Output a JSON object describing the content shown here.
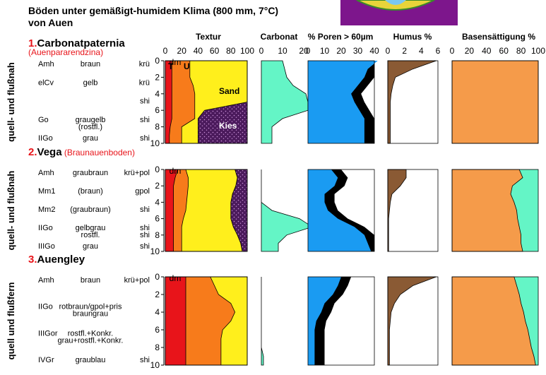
{
  "title": {
    "line1": "Böden unter gemäßigt-humidem Klima (800 mm, 7°C)",
    "line2": "von Auen"
  },
  "headers": {
    "textur": "Textur",
    "carbonat": "Carbonat",
    "poren": "% Poren > 60µm",
    "humus": "Humus %",
    "basen": "Basensättigung %"
  },
  "ticks": {
    "textur": [
      "0",
      "20",
      "40",
      "60",
      "80",
      "100"
    ],
    "carbonat": [
      "0",
      "10",
      "20"
    ],
    "poren": [
      "0",
      "10",
      "20",
      "30",
      "40"
    ],
    "humus": [
      "0",
      "2",
      "4",
      "6"
    ],
    "basen": [
      "0",
      "20",
      "40",
      "60",
      "80",
      "100"
    ],
    "depth": [
      "0",
      "2",
      "4",
      "6",
      "8",
      "10"
    ],
    "depth_top": "dm"
  },
  "labels": {
    "ton": "T",
    "schluff": "U",
    "sand": "Sand",
    "kies": "Kies"
  },
  "colors": {
    "ton": "#e8141a",
    "schluff": "#f77b1b",
    "sand": "#ffef1c",
    "kies": "#4b1a5c",
    "carbonat": "#64f5c6",
    "poren": "#1a9bf2",
    "humus": "#8a5a34",
    "basen": "#f59b4a",
    "basen2": "#64f5c6",
    "logo_bg": "#7d168c"
  },
  "profiles": [
    {
      "number": "1.",
      "name": "Carbonatpaternia",
      "subtitle": "(Auenpararendzina)",
      "side": "quell- und flußnah",
      "horizons": [
        {
          "name": "Amh",
          "color": "braun",
          "carb": "krü"
        },
        {
          "name": "elCv",
          "color": "gelb",
          "carb": "krü"
        },
        {
          "name": "",
          "color": "",
          "carb": "shi"
        },
        {
          "name": "Go",
          "color": "graugelb",
          "color2": "(rostfl.)",
          "carb": "shi"
        },
        {
          "name": "IIGo",
          "color": "grau",
          "carb": "shi"
        }
      ]
    },
    {
      "number": "2.",
      "name": "Vega",
      "subtitle": "(Braunauenboden)",
      "side": "quell- und flußnah",
      "horizons": [
        {
          "name": "Amh",
          "color": "graubraun",
          "carb": "krü+pol"
        },
        {
          "name": "Mm1",
          "color": "(braun)",
          "carb": "gpol"
        },
        {
          "name": "Mm2",
          "color": "(graubraun)",
          "carb": "shi"
        },
        {
          "name": "IIGo",
          "color": "gelbgrau",
          "color2": "rostfl.",
          "carb": "shi",
          "carb2": "shi"
        },
        {
          "name": "IIIGo",
          "color": "grau",
          "carb": "shi"
        }
      ]
    },
    {
      "number": "3.",
      "name": "Auengley",
      "subtitle": "",
      "side": "quell und flußfern",
      "horizons": [
        {
          "name": "Amh",
          "color": "braun",
          "carb": "krü+pol"
        },
        {
          "name": "IIGo",
          "color": "rotbraun/gpol+pris",
          "color2": "braungrau"
        },
        {
          "name": "IIIGor",
          "color": "rostfl.+Konkr.",
          "color2": "grau+rostfl.+Konkr."
        },
        {
          "name": "IVGr",
          "color": "graublau",
          "carb": "shi"
        }
      ]
    }
  ],
  "chart_data": {
    "type": "area",
    "y_axis": {
      "label": "dm",
      "range": [
        0,
        10
      ],
      "inverted": true
    },
    "panels": {
      "textur": {
        "xlim": [
          0,
          100
        ],
        "series": [
          "Ton (T)",
          "Schluff (U)",
          "Sand",
          "Kies"
        ]
      },
      "carbonat": {
        "xlim": [
          0,
          20
        ]
      },
      "poren": {
        "xlim": [
          0,
          40
        ]
      },
      "humus": {
        "xlim": [
          0,
          6
        ]
      },
      "basen": {
        "xlim": [
          0,
          100
        ]
      }
    },
    "profiles": [
      {
        "depth": [
          0,
          1,
          2,
          3,
          4,
          5,
          6,
          7,
          8,
          9,
          10
        ],
        "textur_cumulative": {
          "T": [
            8,
            8,
            8,
            8,
            8,
            8,
            8,
            8,
            6,
            5,
            5
          ],
          "TU": [
            30,
            30,
            30,
            34,
            36,
            36,
            36,
            36,
            20,
            20,
            20
          ],
          "TUS": [
            100,
            100,
            100,
            100,
            100,
            100,
            48,
            40,
            40,
            40,
            40
          ]
        },
        "carbonat": [
          10,
          11,
          12,
          15,
          21,
          22,
          22,
          10,
          5,
          5,
          5
        ],
        "poren_blue": [
          42,
          36,
          34,
          30,
          26,
          28,
          31,
          34,
          34,
          34,
          34
        ],
        "humus": [
          5.8,
          3,
          0.9,
          0.6,
          0.4,
          0.3,
          0.3,
          0.3,
          0.3,
          0.3,
          0.3
        ],
        "basen": [
          100,
          100,
          100,
          100,
          100,
          100,
          100,
          100,
          100,
          100,
          100
        ]
      },
      {
        "depth": [
          0,
          1,
          2,
          3,
          4,
          5,
          6,
          7,
          8,
          9,
          10
        ],
        "textur_cumulative": {
          "T": [
            15,
            12,
            10,
            10,
            10,
            10,
            10,
            10,
            10,
            10,
            10
          ],
          "TU": [
            25,
            28,
            28,
            27,
            26,
            25,
            22,
            20,
            20,
            20,
            20
          ],
          "TUS": [
            85,
            88,
            86,
            82,
            80,
            80,
            80,
            83,
            88,
            92,
            94
          ]
        },
        "carbonat": [
          0,
          0,
          0,
          0,
          0,
          5,
          18,
          24,
          12,
          8,
          8
        ],
        "poren_blue": [
          14,
          18,
          16,
          10,
          10,
          12,
          18,
          28,
          34,
          36,
          38
        ],
        "humus": [
          2.2,
          2.2,
          1.5,
          0.5,
          0.3,
          0.2,
          0.1,
          0.1,
          0.1,
          0.1,
          0.1
        ],
        "basen": [
          78,
          82,
          70,
          68,
          72,
          75,
          76,
          78,
          80,
          80,
          82
        ]
      },
      {
        "depth": [
          0,
          1,
          2,
          3,
          4,
          5,
          6,
          7,
          8,
          9,
          10
        ],
        "textur_cumulative": {
          "T": [
            25,
            25,
            25,
            25,
            25,
            25,
            25,
            25,
            25,
            25,
            25
          ],
          "TU": [
            55,
            60,
            65,
            80,
            85,
            80,
            70,
            68,
            68,
            68,
            68
          ],
          "TUS": [
            100,
            100,
            100,
            100,
            100,
            100,
            100,
            100,
            100,
            100,
            100
          ]
        },
        "carbonat": [
          0,
          0,
          0,
          0,
          0,
          0,
          0,
          0,
          0,
          1,
          1
        ],
        "poren_blue": [
          20,
          18,
          15,
          10,
          8,
          5,
          4,
          4,
          4,
          4,
          4
        ],
        "humus": [
          5.8,
          3,
          1.5,
          0.8,
          0.4,
          0.3,
          0.2,
          0.2,
          0.2,
          0.2,
          0.2
        ],
        "basen": [
          72,
          75,
          78,
          80,
          83,
          85,
          88,
          90,
          92,
          95,
          97
        ]
      }
    ]
  }
}
